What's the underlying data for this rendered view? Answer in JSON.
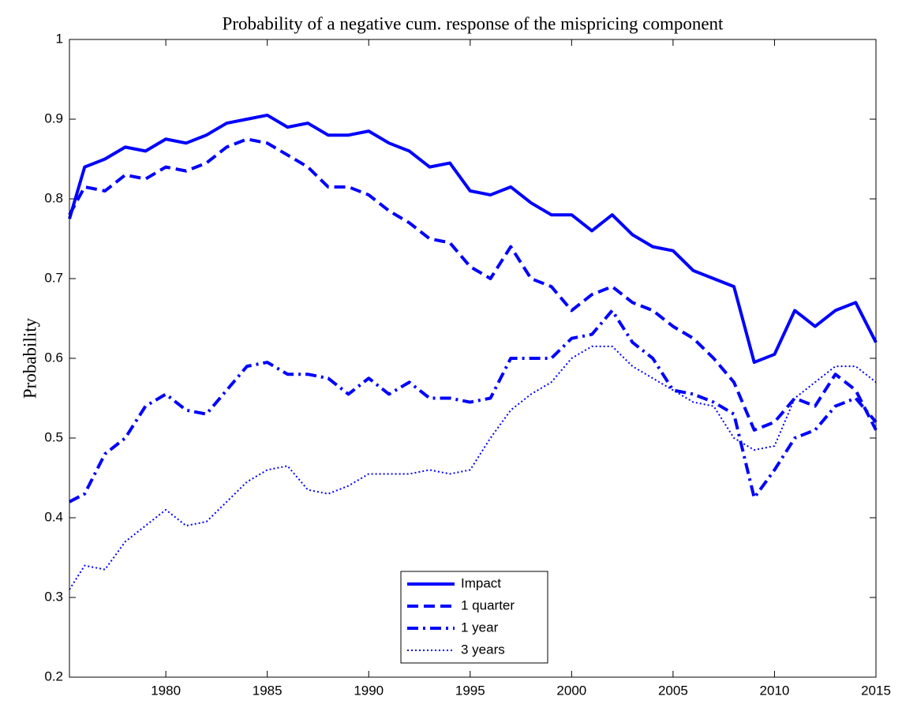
{
  "chart_data": {
    "type": "line",
    "title": "Probability of a negative cum. response of the mispricing component",
    "y_label": "Probability",
    "x": [
      1975.25,
      1976,
      1977,
      1978,
      1979,
      1980,
      1981,
      1982,
      1983,
      1984,
      1985,
      1986,
      1987,
      1988,
      1989,
      1990,
      1991,
      1992,
      1993,
      1994,
      1995,
      1996,
      1997,
      1998,
      1999,
      2000,
      2001,
      2002,
      2003,
      2004,
      2005,
      2006,
      2007,
      2008,
      2009,
      2010,
      2011,
      2012,
      2013,
      2014,
      2015
    ],
    "series": [
      {
        "name": "Impact",
        "color": "#0000ff",
        "linestyle": "solid",
        "values": [
          0.775,
          0.84,
          0.85,
          0.865,
          0.86,
          0.875,
          0.87,
          0.88,
          0.895,
          0.9,
          0.905,
          0.89,
          0.895,
          0.88,
          0.88,
          0.885,
          0.87,
          0.86,
          0.84,
          0.845,
          0.81,
          0.805,
          0.815,
          0.795,
          0.78,
          0.78,
          0.76,
          0.78,
          0.755,
          0.74,
          0.735,
          0.71,
          0.7,
          0.69,
          0.595,
          0.605,
          0.66,
          0.64,
          0.66,
          0.67,
          0.62
        ]
      },
      {
        "name": "1 quarter",
        "color": "#0000ff",
        "linestyle": "dashed",
        "values": [
          0.78,
          0.815,
          0.81,
          0.83,
          0.825,
          0.84,
          0.835,
          0.845,
          0.865,
          0.875,
          0.87,
          0.855,
          0.84,
          0.815,
          0.815,
          0.805,
          0.785,
          0.77,
          0.75,
          0.745,
          0.715,
          0.7,
          0.74,
          0.7,
          0.69,
          0.66,
          0.68,
          0.69,
          0.67,
          0.66,
          0.64,
          0.625,
          0.6,
          0.57,
          0.51,
          0.52,
          0.55,
          0.54,
          0.58,
          0.56,
          0.51
        ]
      },
      {
        "name": "1 year",
        "color": "#0000ff",
        "linestyle": "dashdot",
        "values": [
          0.42,
          0.43,
          0.48,
          0.5,
          0.54,
          0.555,
          0.535,
          0.53,
          0.56,
          0.59,
          0.595,
          0.58,
          0.58,
          0.575,
          0.555,
          0.575,
          0.555,
          0.57,
          0.55,
          0.55,
          0.545,
          0.55,
          0.6,
          0.6,
          0.6,
          0.625,
          0.63,
          0.66,
          0.62,
          0.6,
          0.56,
          0.555,
          0.545,
          0.53,
          0.425,
          0.46,
          0.5,
          0.51,
          0.54,
          0.55,
          0.52
        ]
      },
      {
        "name": "3 years",
        "color": "#0000ff",
        "linestyle": "dotted",
        "values": [
          0.31,
          0.34,
          0.335,
          0.37,
          0.39,
          0.41,
          0.39,
          0.395,
          0.42,
          0.445,
          0.46,
          0.465,
          0.435,
          0.43,
          0.44,
          0.455,
          0.455,
          0.455,
          0.46,
          0.455,
          0.46,
          0.5,
          0.535,
          0.555,
          0.57,
          0.6,
          0.615,
          0.615,
          0.59,
          0.575,
          0.56,
          0.545,
          0.54,
          0.5,
          0.485,
          0.49,
          0.55,
          0.57,
          0.59,
          0.59,
          0.57
        ]
      }
    ],
    "xlim": [
      1975.25,
      2015
    ],
    "xticks": [
      1980,
      1985,
      1990,
      1995,
      2000,
      2005,
      2010,
      2015
    ],
    "ylim": [
      0.2,
      1
    ],
    "yticks": [
      0.2,
      0.3,
      0.4,
      0.5,
      0.6,
      0.7,
      0.8,
      0.9,
      1
    ],
    "grid": false,
    "legend": "lower center"
  }
}
